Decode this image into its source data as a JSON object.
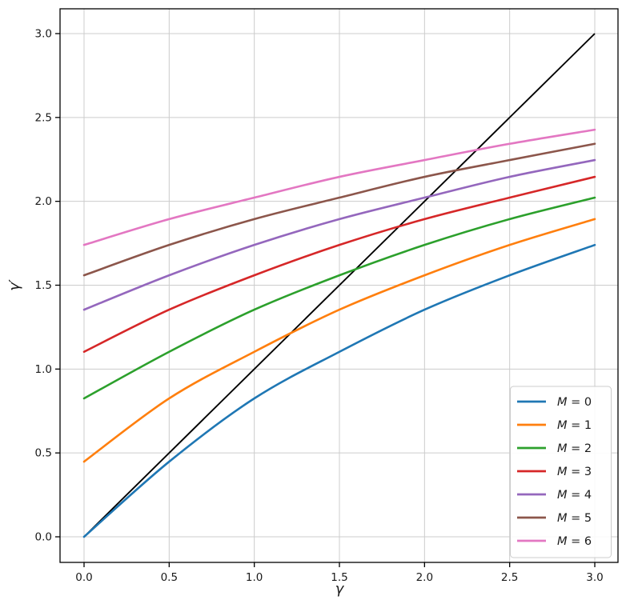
{
  "chart_data": {
    "type": "line",
    "title": "",
    "xlabel": "γ",
    "ylabel": "γ′",
    "xlim": [
      -0.141,
      3.136
    ],
    "ylim": [
      -0.153,
      3.148
    ],
    "xticks": [
      0.0,
      0.5,
      1.0,
      1.5,
      2.0,
      2.5,
      3.0
    ],
    "yticks": [
      0.0,
      0.5,
      1.0,
      1.5,
      2.0,
      2.5,
      3.0
    ],
    "grid": true,
    "grid_color": "#cccccc",
    "background": "#ffffff",
    "legend_position": "lower right",
    "x": [
      0.0,
      0.5,
      1.0,
      1.5,
      2.0,
      2.5,
      3.0
    ],
    "series": [
      {
        "name": "M = 0",
        "color": "#1f77b4",
        "values": [
          0.0,
          0.448,
          0.825,
          1.103,
          1.354,
          1.559,
          1.74
        ]
      },
      {
        "name": "M = 1",
        "color": "#ff7f0e",
        "values": [
          0.448,
          0.825,
          1.103,
          1.354,
          1.559,
          1.74,
          1.894
        ]
      },
      {
        "name": "M = 2",
        "color": "#2ca02c",
        "values": [
          0.825,
          1.103,
          1.354,
          1.559,
          1.74,
          1.894,
          2.022
        ]
      },
      {
        "name": "M = 3",
        "color": "#d62728",
        "values": [
          1.103,
          1.354,
          1.559,
          1.74,
          1.894,
          2.022,
          2.146
        ]
      },
      {
        "name": "M = 4",
        "color": "#9467bd",
        "values": [
          1.354,
          1.559,
          1.74,
          1.894,
          2.022,
          2.146,
          2.246
        ]
      },
      {
        "name": "M = 5",
        "color": "#8c564b",
        "values": [
          1.559,
          1.74,
          1.894,
          2.022,
          2.146,
          2.246,
          2.343
        ]
      },
      {
        "name": "M = 6",
        "color": "#e377c2",
        "values": [
          1.74,
          1.894,
          2.022,
          2.146,
          2.246,
          2.343,
          2.427
        ]
      }
    ],
    "reference_line": {
      "name": "identity",
      "color": "#000000",
      "x": [
        0,
        3
      ],
      "y": [
        0,
        3
      ]
    }
  }
}
